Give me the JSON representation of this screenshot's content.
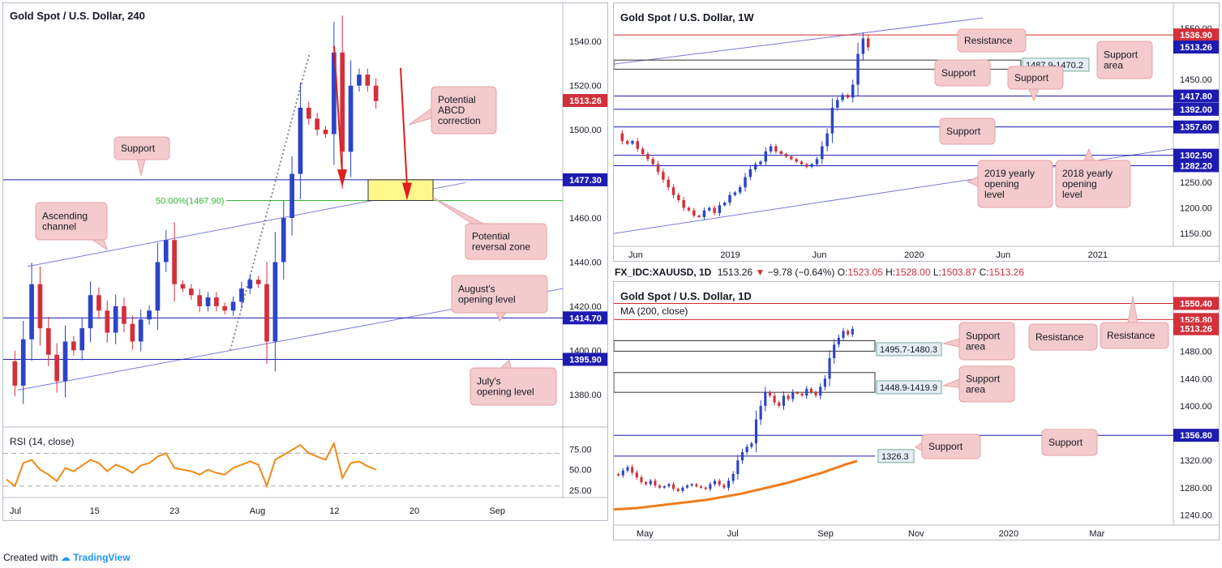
{
  "colors": {
    "candle_up": "#2b44c8",
    "candle_down": "#d2303b",
    "support_line": "#1d1bb0",
    "resistance_line": "#d02b2b",
    "channel": "#7a7ad8",
    "fib": "#33b533",
    "callout_bg": "#f4cbcc",
    "callout_border": "#e4a3a6",
    "rsi": "#f08a18",
    "ma": "#f07c1c",
    "zone_fill": "#fff78c",
    "arrow": "#e01e1e"
  },
  "footer": {
    "created_with": "Created with",
    "brand": "TradingView"
  },
  "chart_data": [
    {
      "id": "h4",
      "type": "candlestick",
      "title": "Gold Spot / U.S. Dollar, 240",
      "ylim": [
        1370,
        1550
      ],
      "y_ticks": [
        "1540.00",
        "1520.00",
        "1500.00",
        "1460.00",
        "1440.00",
        "1420.00",
        "1400.00",
        "1380.00"
      ],
      "x_ticks": [
        "Jul",
        "15",
        "23",
        "Aug",
        "12",
        "20",
        "Sep"
      ],
      "price_tags": [
        {
          "label": "1513.26",
          "value": 1513.26,
          "color": "#d2303b"
        },
        {
          "label": "1477.30",
          "value": 1477.3,
          "color": "#1d1bb0"
        },
        {
          "label": "1414.70",
          "value": 1414.7,
          "color": "#1d1bb0"
        },
        {
          "label": "1395.90",
          "value": 1395.9,
          "color": "#1d1bb0"
        }
      ],
      "levels": [
        {
          "value": 1477.3,
          "kind": "support"
        },
        {
          "value": 1414.7,
          "kind": "support"
        },
        {
          "value": 1395.9,
          "kind": "support"
        }
      ],
      "fib_label": "50.00%(1467.90)",
      "fib_value": 1467.9,
      "reversal_zone": [
        1467.9,
        1477.3
      ],
      "price_path": [
        1395,
        1384,
        1405,
        1430,
        1410,
        1398,
        1386,
        1404,
        1400,
        1410,
        1425,
        1418,
        1408,
        1420,
        1412,
        1404,
        1414,
        1418,
        1440,
        1450,
        1430,
        1428,
        1425,
        1420,
        1424,
        1420,
        1418,
        1422,
        1428,
        1432,
        1430,
        1404,
        1440,
        1460,
        1480,
        1510,
        1505,
        1500,
        1498,
        1535,
        1490,
        1520,
        1525,
        1520,
        1513
      ],
      "annotations": [
        "Support",
        "Ascending channel",
        "Potential ABCD correction",
        "Potential reversal zone",
        "August's opening level",
        "July's opening level"
      ],
      "rsi": {
        "label": "RSI (14, close)",
        "ticks": [
          "75.00",
          "50.00",
          "25.00"
        ],
        "levels": [
          70,
          30
        ],
        "ylim": [
          20,
          95
        ],
        "values": [
          38,
          30,
          58,
          62,
          50,
          44,
          36,
          52,
          48,
          55,
          62,
          58,
          48,
          56,
          52,
          46,
          55,
          58,
          66,
          70,
          52,
          50,
          48,
          44,
          50,
          46,
          44,
          52,
          56,
          60,
          56,
          30,
          62,
          68,
          74,
          80,
          70,
          66,
          62,
          82,
          40,
          58,
          60,
          54,
          50
        ]
      }
    },
    {
      "id": "weekly",
      "type": "candlestick",
      "title": "Gold Spot / U.S. Dollar, 1W",
      "ylim": [
        1125,
        1575
      ],
      "y_ticks": [
        "1550.00",
        "1450.00",
        "1250.00",
        "1200.00",
        "1150.00"
      ],
      "x_ticks": [
        "Jun",
        "2019",
        "Jun",
        "2020",
        "Jun",
        "2021"
      ],
      "price_tags": [
        {
          "label": "1536.90",
          "value": 1536.9,
          "color": "#d2303b"
        },
        {
          "label": "1513.26",
          "value": 1513.26,
          "color": "#1d1bb0"
        },
        {
          "label": "1417.80",
          "value": 1417.8,
          "color": "#1d1bb0"
        },
        {
          "label": "1392.00",
          "value": 1392.0,
          "color": "#1d1bb0"
        },
        {
          "label": "1357.60",
          "value": 1357.6,
          "color": "#1d1bb0"
        },
        {
          "label": "1302.50",
          "value": 1302.5,
          "color": "#1d1bb0"
        },
        {
          "label": "1282.20",
          "value": 1282.2,
          "color": "#1d1bb0"
        }
      ],
      "levels": [
        {
          "value": 1536.9,
          "kind": "resistance"
        },
        {
          "value": 1417.8,
          "kind": "support"
        },
        {
          "value": 1392.0,
          "kind": "support"
        },
        {
          "value": 1357.6,
          "kind": "support"
        },
        {
          "value": 1302.5,
          "kind": "support"
        },
        {
          "value": 1282.2,
          "kind": "support"
        }
      ],
      "zone_label": "1487.9-1470.2",
      "zone": [
        1470.2,
        1487.9
      ],
      "price_path": [
        1345,
        1330,
        1325,
        1330,
        1315,
        1305,
        1295,
        1285,
        1270,
        1255,
        1240,
        1225,
        1215,
        1200,
        1195,
        1185,
        1182,
        1195,
        1200,
        1190,
        1205,
        1210,
        1225,
        1230,
        1240,
        1260,
        1275,
        1285,
        1290,
        1310,
        1320,
        1310,
        1305,
        1300,
        1295,
        1290,
        1285,
        1280,
        1285,
        1295,
        1320,
        1345,
        1395,
        1410,
        1420,
        1415,
        1440,
        1500,
        1530,
        1513
      ],
      "annotations": [
        "Resistance",
        "Support",
        "Support area",
        "Support",
        "Support",
        "2019 yearly opening level",
        "2018 yearly opening level"
      ]
    },
    {
      "id": "daily",
      "type": "candlestick",
      "title": "Gold Spot / U.S. Dollar, 1D",
      "ma_label": "MA (200, close)",
      "ylim": [
        1225,
        1570
      ],
      "y_ticks": [
        "1480.00",
        "1440.00",
        "1400.00",
        "1320.00",
        "1280.00",
        "1240.00"
      ],
      "x_ticks": [
        "May",
        "Jul",
        "Sep",
        "Nov",
        "2020",
        "Mar"
      ],
      "price_tags": [
        {
          "label": "1550.40",
          "value": 1550.4,
          "color": "#d2303b"
        },
        {
          "label": "1526.80",
          "value": 1526.8,
          "color": "#d2303b"
        },
        {
          "label": "1513.26",
          "value": 1513.26,
          "color": "#d2303b"
        },
        {
          "label": "1356.80",
          "value": 1356.8,
          "color": "#1d1bb0"
        }
      ],
      "levels": [
        {
          "value": 1550.4,
          "kind": "resistance"
        },
        {
          "value": 1526.8,
          "kind": "resistance"
        },
        {
          "value": 1356.8,
          "kind": "support"
        },
        {
          "value": 1326.3,
          "kind": "support"
        }
      ],
      "zones": [
        {
          "label": "1495.7-1480.3",
          "range": [
            1480.3,
            1495.7
          ]
        },
        {
          "label": "1448.9-1419.9",
          "range": [
            1419.9,
            1448.9
          ]
        }
      ],
      "level_label": "1326.3",
      "price_path": [
        1300,
        1298,
        1305,
        1310,
        1302,
        1295,
        1288,
        1285,
        1290,
        1283,
        1280,
        1282,
        1285,
        1278,
        1275,
        1280,
        1283,
        1285,
        1282,
        1280,
        1278,
        1285,
        1290,
        1284,
        1280,
        1290,
        1300,
        1320,
        1332,
        1340,
        1345,
        1380,
        1400,
        1420,
        1415,
        1405,
        1400,
        1415,
        1410,
        1420,
        1418,
        1415,
        1425,
        1420,
        1415,
        1428,
        1440,
        1470,
        1490,
        1500,
        1510,
        1505,
        1513
      ],
      "ma_values": [
        1248,
        1249,
        1250,
        1252,
        1254,
        1256,
        1258,
        1260,
        1262,
        1265,
        1268,
        1271,
        1275,
        1279,
        1283,
        1287,
        1292,
        1297,
        1302,
        1308,
        1314,
        1319
      ],
      "annotations": [
        "Resistance",
        "Resistance",
        "Support area",
        "Support area",
        "Support",
        "Support"
      ]
    }
  ],
  "h4": {
    "title": "Gold Spot / U.S. Dollar, 240",
    "labels": {
      "support": "Support",
      "ascending": "Ascending channel",
      "abcd": "Potential ABCD correction",
      "reversal": "Potential reversal zone",
      "august": "August's opening level",
      "july": "July's opening level"
    },
    "rsi_label": "RSI (14, close)"
  },
  "weekly": {
    "title": "Gold Spot / U.S. Dollar, 1W",
    "labels": {
      "resistance": "Resistance",
      "support1": "Support",
      "support_area": "Support area",
      "support2": "Support",
      "support3": "Support",
      "y2019": "2019 yearly opening level",
      "y2018": "2018 yearly opening level"
    }
  },
  "daily": {
    "header": {
      "symbol": "FX_IDC:XAUUSD, 1D",
      "price": "1513.26",
      "change": "−9.78 (−0.64%)",
      "o_label": "O:",
      "o": "1523.05",
      "h_label": "H:",
      "h": "1528.00",
      "l_label": "L:",
      "l": "1503.87",
      "c_label": "C:",
      "c": "1513.26"
    },
    "title": "Gold Spot / U.S. Dollar, 1D",
    "labels": {
      "res1": "Resistance",
      "res2": "Resistance",
      "area1": "Support area",
      "area2": "Support area",
      "support1": "Support",
      "support2": "Support"
    }
  }
}
